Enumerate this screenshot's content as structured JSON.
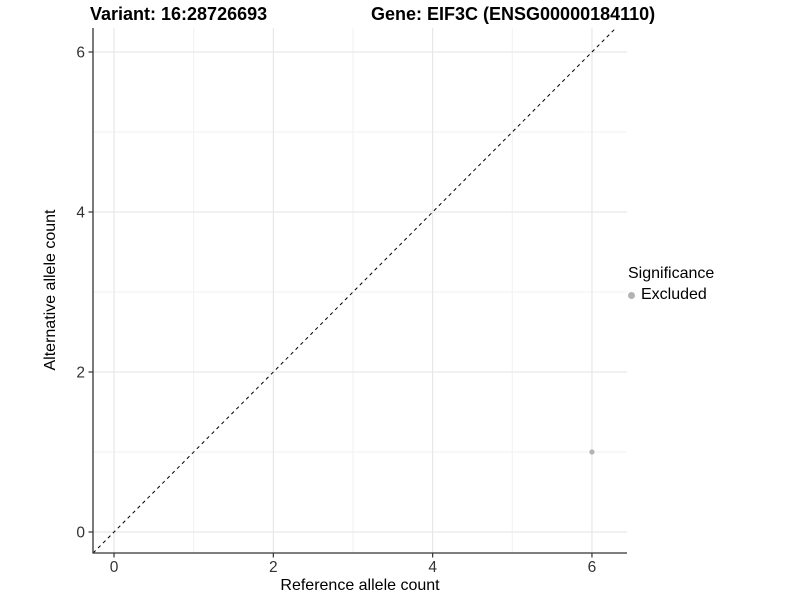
{
  "header": {
    "variant_title": "Variant: 16:28726693",
    "gene_title": "Gene: EIF3C (ENSG00000184110)"
  },
  "chart_data": {
    "type": "scatter",
    "title_left": "Variant: 16:28726693",
    "title_right": "Gene: EIF3C (ENSG00000184110)",
    "xlabel": "Reference allele count",
    "ylabel": "Alternative allele count",
    "xlim": [
      -0.264,
      6.44
    ],
    "ylim": [
      -0.2625,
      6.3
    ],
    "xticks": [
      0,
      2,
      4,
      6
    ],
    "yticks": [
      0,
      2,
      4,
      6
    ],
    "minor_xticks": [
      1,
      3,
      5
    ],
    "minor_yticks": [
      1,
      3,
      5
    ],
    "grid": true,
    "refline": {
      "type": "identity",
      "slope": 1,
      "intercept": 0,
      "style": "dashed"
    },
    "series": [
      {
        "name": "Excluded",
        "points": [
          {
            "x": 6,
            "y": 1
          }
        ]
      }
    ],
    "legend": {
      "title": "Significance",
      "position": "right",
      "entries": [
        {
          "label": "Excluded"
        }
      ]
    }
  },
  "colors": {
    "background": "#ffffff",
    "grid_major": "#e3e3e3",
    "grid_minor": "#f1f1f1",
    "axis_line": "#333333",
    "tick_mark": "#333333",
    "tick_label": "#333333",
    "refline": "#000000",
    "excluded_point": "#b3b3b3",
    "title_text": "#000000"
  }
}
